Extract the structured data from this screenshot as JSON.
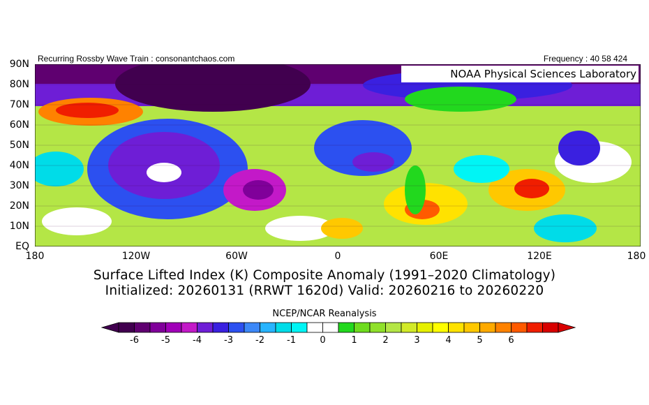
{
  "header": {
    "left": "Recurring Rossby Wave Train : consonantchaos.com",
    "right": "Frequency : 40 58 424"
  },
  "map": {
    "lab_box": "NOAA Physical Sciences Laboratory",
    "lat_labels": [
      "90N",
      "80N",
      "70N",
      "60N",
      "50N",
      "40N",
      "30N",
      "20N",
      "10N",
      "EQ"
    ],
    "lon_labels": [
      "180",
      "120W",
      "60W",
      "0",
      "60E",
      "120E",
      "180"
    ]
  },
  "title": {
    "line1": "Surface Lifted Index (K) Composite Anomaly (1991–2020 Climatology)",
    "line2": "Initialized: 20260131 (RRWT 1620d) Valid: 20260216 to 20260220"
  },
  "colorbar": {
    "source": "NCEP/NCAR Reanalysis",
    "labels": [
      "-6",
      "-5",
      "-4",
      "-3",
      "-2",
      "-1",
      "0",
      "1",
      "2",
      "3",
      "4",
      "5",
      "6"
    ],
    "colors": [
      "#41004f",
      "#5f0070",
      "#80009a",
      "#a000b8",
      "#c319c8",
      "#6e1ed6",
      "#3a20e0",
      "#2c50f0",
      "#3c88f8",
      "#27b4ff",
      "#00dce8",
      "#00f5f5",
      "#ffffff",
      "#ffffff",
      "#22d81e",
      "#6edc1e",
      "#8fe02a",
      "#b4e646",
      "#d2ea28",
      "#e6f000",
      "#ffff00",
      "#ffe200",
      "#ffc800",
      "#ffaa00",
      "#ff8200",
      "#ff5a00",
      "#f01e00",
      "#d80000"
    ]
  }
}
